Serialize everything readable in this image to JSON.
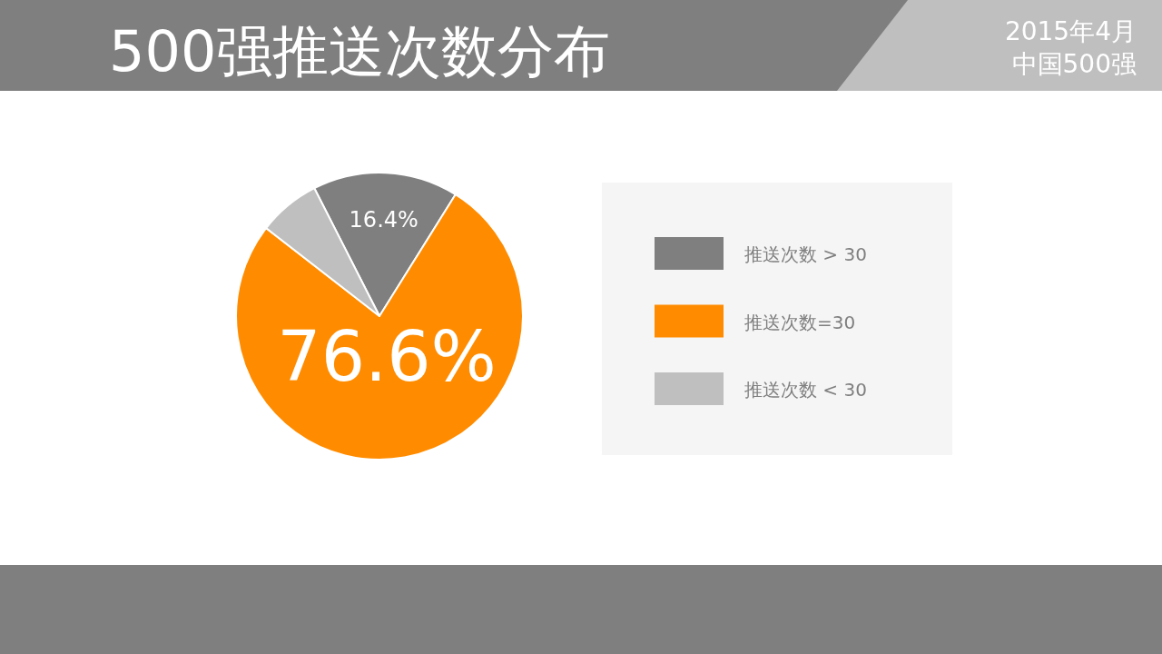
{
  "chart_data": {
    "type": "pie",
    "title": "500强推送次数分布",
    "annotations": [
      "2015年4月",
      "中国500强"
    ],
    "categories": [
      "推送次数 > 30",
      "推送次数=30",
      "推送次数 < 30"
    ],
    "values": [
      16.4,
      76.6,
      7.0
    ],
    "colors": [
      "#7f7f7f",
      "#ff8c00",
      "#bfbfbf"
    ],
    "value_labels": [
      "16.4%",
      "76.6%",
      null
    ],
    "legend": "right"
  }
}
